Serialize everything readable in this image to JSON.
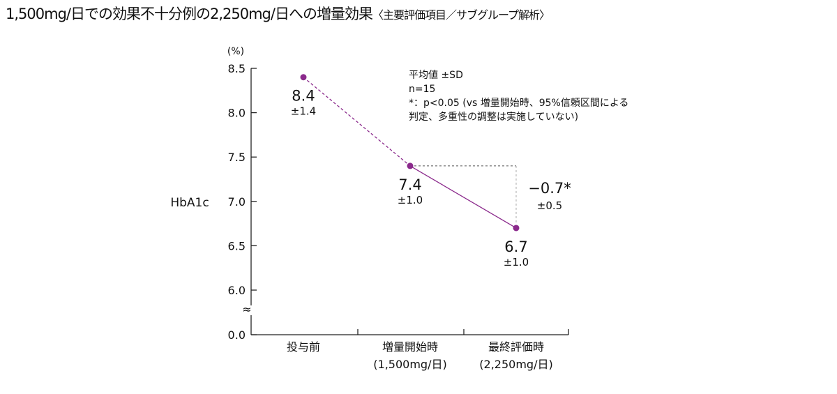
{
  "chart_data": {
    "type": "line",
    "title": "1,500mg/日での効果不十分例の2,250mg/日への増量効果",
    "subtitle": "〈主要評価項目／サブグループ解析〉",
    "ylabel": "HbA1c",
    "yunit": "(%)",
    "ylim": [
      6.0,
      8.5
    ],
    "yticks": [
      "8.5",
      "8.0",
      "7.5",
      "7.0",
      "6.5",
      "6.0",
      "0.0"
    ],
    "axis_break": "≈",
    "categories": [
      {
        "line1": "投与前",
        "line2": ""
      },
      {
        "line1": "増量開始時",
        "line2": "(1,500mg/日)"
      },
      {
        "line1": "最終評価時",
        "line2": "(2,250mg/日)"
      }
    ],
    "values": [
      8.4,
      7.4,
      6.7
    ],
    "value_labels": [
      "8.4",
      "7.4",
      "6.7"
    ],
    "sd_labels": [
      "±1.4",
      "±1.0",
      "±1.0"
    ],
    "change": {
      "label": "−0.7*",
      "sd": "±0.5"
    },
    "series_color": "#8b2a8c",
    "notes": [
      "平均値 ±SD",
      "n=15",
      "*：p<0.05 (vs 増量開始時、95%信頼区間による",
      "判定、多重性の調整は実施していない)"
    ]
  }
}
